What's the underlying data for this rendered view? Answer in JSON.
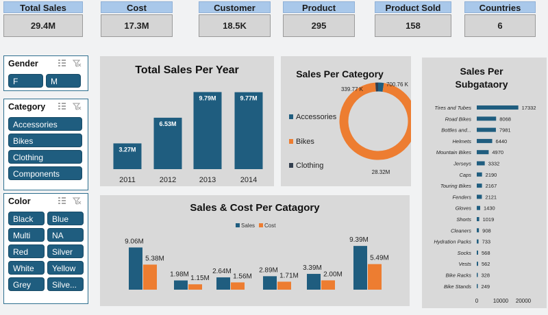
{
  "kpis": [
    {
      "title": "Total Sales",
      "value": "29.4M"
    },
    {
      "title": "Cost",
      "value": "17.3M"
    },
    {
      "title": "Customer",
      "value": "18.5K"
    },
    {
      "title": "Product",
      "value": "295"
    },
    {
      "title": "Product Sold",
      "value": "158"
    },
    {
      "title": "Countries",
      "value": "6"
    }
  ],
  "slicers": {
    "gender": {
      "title": "Gender",
      "items": [
        "F",
        "M"
      ]
    },
    "category": {
      "title": "Category",
      "items": [
        "Accessories",
        "Bikes",
        "Clothing",
        "Components"
      ]
    },
    "color": {
      "title": "Color",
      "items": [
        "Black",
        "Blue",
        "Multi",
        "NA",
        "Red",
        "Silver",
        "White",
        "Yellow",
        "Grey",
        "Silve..."
      ]
    }
  },
  "colors": {
    "bar": "#1f5d7f",
    "cost": "#ed7d31",
    "clothing": "#333f4f",
    "panel": "#d9d9d9",
    "kpi_header": "#a9c8ea"
  },
  "icons": [
    "multi-select-icon",
    "clear-filter-icon"
  ],
  "chart_data": [
    {
      "type": "bar",
      "title": "Total Sales Per Year",
      "categories": [
        "2011",
        "2012",
        "2013",
        "2014"
      ],
      "values": [
        3.27,
        6.53,
        9.79,
        9.77
      ],
      "labels": [
        "3.27M",
        "6.53M",
        "9.79M",
        "9.77M"
      ],
      "ylim": [
        0,
        10
      ]
    },
    {
      "type": "pie",
      "title": "Sales Per Category",
      "categories": [
        "Accessories",
        "Bikes",
        "Clothing"
      ],
      "values": [
        700.76,
        28320,
        339.77
      ],
      "labels": [
        "700.76 K",
        "28.32M",
        "339.77 K"
      ],
      "legend_position": "left",
      "donut": true
    },
    {
      "type": "bar",
      "title": "Sales & Cost Per Catagory",
      "legend": [
        "Sales",
        "Cost"
      ],
      "series": [
        {
          "name": "Sales",
          "values": [
            9.06,
            1.98,
            2.64,
            2.89,
            3.39,
            9.39
          ],
          "labels": [
            "9.06M",
            "1.98M",
            "2.64M",
            "2.89M",
            "3.39M",
            "9.39M"
          ]
        },
        {
          "name": "Cost",
          "values": [
            5.38,
            1.15,
            1.56,
            1.71,
            2.0,
            5.49
          ],
          "labels": [
            "5.38M",
            "1.15M",
            "1.56M",
            "1.71M",
            "2.00M",
            "5.49M"
          ]
        }
      ],
      "ylim": [
        0,
        10
      ]
    },
    {
      "type": "bar",
      "orientation": "horizontal",
      "title": "Sales Per Subgataory",
      "title_lines": [
        "Sales Per",
        "Subgataory"
      ],
      "categories": [
        "Tires and Tubes",
        "Road Bikes",
        "Bottles and...",
        "Helmets",
        "Mountain Bikes",
        "Jerseys",
        "Caps",
        "Touring Bikes",
        "Fenders",
        "Gloves",
        "Shorts",
        "Cleaners",
        "Hydration Packs",
        "Socks",
        "Vests",
        "Bike Racks",
        "Bike Stands"
      ],
      "values": [
        17332,
        8068,
        7981,
        6440,
        4970,
        3332,
        2190,
        2167,
        2121,
        1430,
        1019,
        908,
        733,
        568,
        562,
        328,
        249
      ],
      "xticks": [
        "0",
        "10000",
        "20000"
      ],
      "xlim": [
        0,
        20000
      ]
    }
  ]
}
